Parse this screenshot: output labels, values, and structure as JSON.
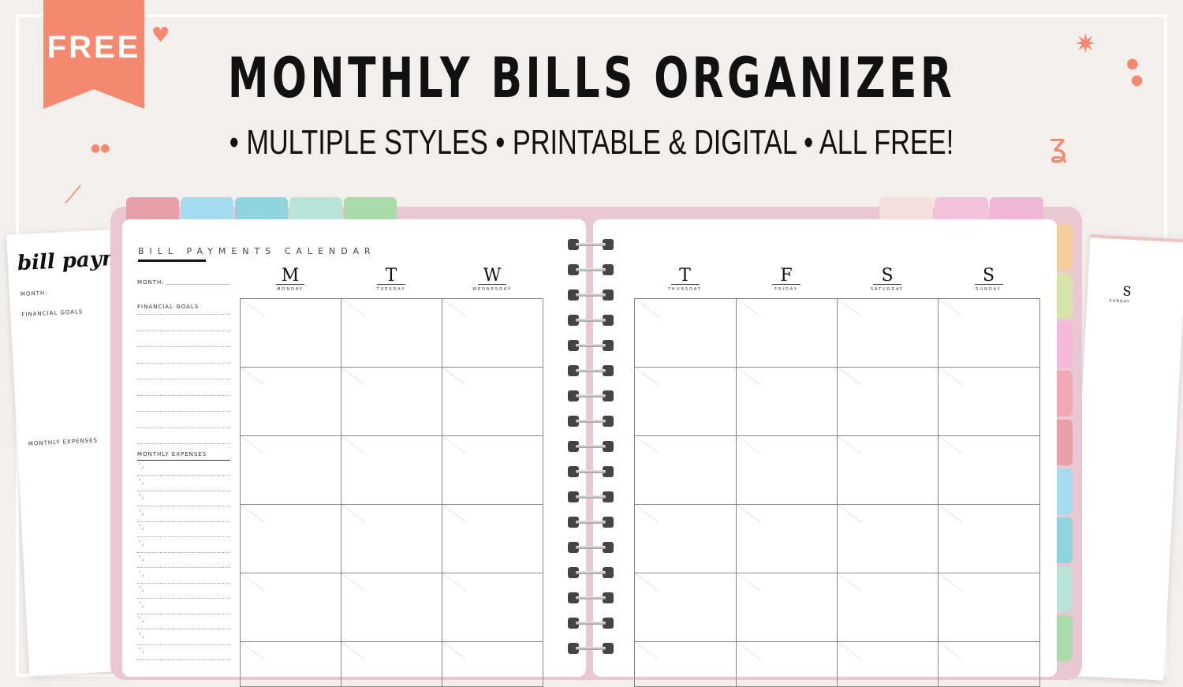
{
  "banner": {
    "badge": "FREE",
    "title": "MONTHLY BILLS ORGANIZER",
    "subtitle": "• MULTIPLE STYLES • PRINTABLE & DIGITAL • ALL FREE!"
  },
  "colors": {
    "accent": "#f4896f",
    "cover": "#e9c7d3",
    "background": "#f3efec"
  },
  "planner": {
    "heading": "BILL PAYMENTS CALENDAR",
    "month_label": "MONTH:",
    "financial_goals": "FINANCIAL GOALS",
    "monthly_expenses": "MONTHLY EXPENSES",
    "left_days": [
      {
        "letter": "M",
        "name": "MONDAY"
      },
      {
        "letter": "T",
        "name": "TUESDAY"
      },
      {
        "letter": "W",
        "name": "WEDNESDAY"
      }
    ],
    "right_days": [
      {
        "letter": "T",
        "name": "THURSDAY"
      },
      {
        "letter": "F",
        "name": "FRIDAY"
      },
      {
        "letter": "S",
        "name": "SATURDAY"
      },
      {
        "letter": "S",
        "name": "SUNDAY"
      }
    ],
    "top_tabs_left": [
      "#e8a0a8",
      "#a6dcef",
      "#8fd3de",
      "#b7e4d6",
      "#a8dba8"
    ],
    "top_tabs_right": [
      "#f6dedd",
      "#f4c1da",
      "#f0b6d6"
    ],
    "side_tabs": [
      "#f4cf9a",
      "#d8e4a8",
      "#f4b8d8",
      "#f2a8b4",
      "#e8a0a8",
      "#a6dcef",
      "#8fd3de",
      "#b7e4d6",
      "#a8dba8"
    ]
  },
  "left_sheet": {
    "script_title": "bill payment",
    "month_label": "MONTH:",
    "financial_goals": "FINANCIAL GOALS",
    "monthly_expenses": "MONTHLY EXPENSES"
  },
  "right_sheet": {
    "letter": "S",
    "name": "SUNDAY"
  }
}
